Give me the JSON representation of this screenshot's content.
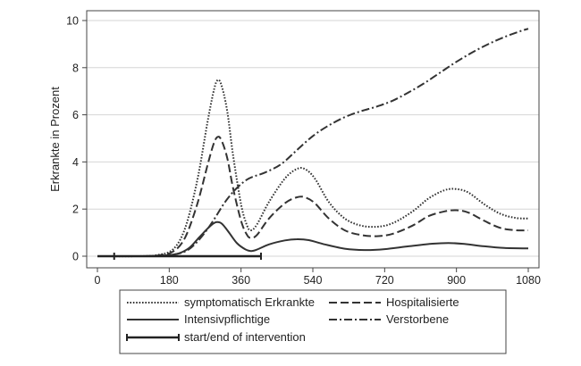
{
  "chart_data": {
    "type": "line",
    "title": "",
    "xlabel": "",
    "ylabel": "Erkrankte in Prozent",
    "xlim": [
      0,
      1080
    ],
    "ylim": [
      0,
      10
    ],
    "x_ticks": [
      0,
      180,
      360,
      540,
      720,
      900,
      1080
    ],
    "y_ticks": [
      0,
      2,
      4,
      6,
      8,
      10
    ],
    "grid": "horizontal",
    "legend_position": "bottom",
    "series": [
      {
        "name": "symptomatisch Erkrankte",
        "style": "dotted",
        "color": "#333333",
        "points": [
          [
            0,
            0
          ],
          [
            100,
            0
          ],
          [
            150,
            0.05
          ],
          [
            190,
            0.3
          ],
          [
            220,
            1.2
          ],
          [
            250,
            3.2
          ],
          [
            275,
            5.6
          ],
          [
            290,
            6.9
          ],
          [
            300,
            7.45
          ],
          [
            310,
            7.3
          ],
          [
            325,
            6.2
          ],
          [
            340,
            4.3
          ],
          [
            360,
            2.2
          ],
          [
            375,
            1.3
          ],
          [
            385,
            1.1
          ],
          [
            400,
            1.35
          ],
          [
            430,
            2.3
          ],
          [
            470,
            3.3
          ],
          [
            500,
            3.7
          ],
          [
            520,
            3.7
          ],
          [
            545,
            3.3
          ],
          [
            580,
            2.3
          ],
          [
            620,
            1.6
          ],
          [
            660,
            1.3
          ],
          [
            700,
            1.25
          ],
          [
            740,
            1.4
          ],
          [
            790,
            1.9
          ],
          [
            830,
            2.45
          ],
          [
            870,
            2.8
          ],
          [
            900,
            2.85
          ],
          [
            930,
            2.7
          ],
          [
            970,
            2.2
          ],
          [
            1010,
            1.8
          ],
          [
            1050,
            1.62
          ],
          [
            1080,
            1.6
          ]
        ]
      },
      {
        "name": "Hospitalisierte",
        "style": "dashed",
        "color": "#333333",
        "points": [
          [
            0,
            0
          ],
          [
            100,
            0
          ],
          [
            150,
            0.03
          ],
          [
            190,
            0.2
          ],
          [
            220,
            0.8
          ],
          [
            250,
            2.2
          ],
          [
            275,
            3.8
          ],
          [
            290,
            4.7
          ],
          [
            300,
            5.05
          ],
          [
            310,
            4.95
          ],
          [
            325,
            4.2
          ],
          [
            340,
            2.9
          ],
          [
            360,
            1.5
          ],
          [
            375,
            0.9
          ],
          [
            385,
            0.78
          ],
          [
            400,
            0.9
          ],
          [
            430,
            1.6
          ],
          [
            470,
            2.25
          ],
          [
            500,
            2.5
          ],
          [
            520,
            2.5
          ],
          [
            545,
            2.25
          ],
          [
            580,
            1.6
          ],
          [
            620,
            1.1
          ],
          [
            660,
            0.9
          ],
          [
            700,
            0.85
          ],
          [
            740,
            0.95
          ],
          [
            790,
            1.3
          ],
          [
            830,
            1.7
          ],
          [
            870,
            1.9
          ],
          [
            900,
            1.95
          ],
          [
            930,
            1.85
          ],
          [
            970,
            1.5
          ],
          [
            1010,
            1.2
          ],
          [
            1050,
            1.1
          ],
          [
            1080,
            1.1
          ]
        ]
      },
      {
        "name": "Intensivpflichtige",
        "style": "solid",
        "color": "#333333",
        "points": [
          [
            0,
            0
          ],
          [
            110,
            0
          ],
          [
            160,
            0.02
          ],
          [
            200,
            0.1
          ],
          [
            230,
            0.35
          ],
          [
            255,
            0.8
          ],
          [
            275,
            1.15
          ],
          [
            290,
            1.38
          ],
          [
            300,
            1.45
          ],
          [
            312,
            1.38
          ],
          [
            330,
            1.0
          ],
          [
            350,
            0.55
          ],
          [
            370,
            0.3
          ],
          [
            385,
            0.22
          ],
          [
            400,
            0.28
          ],
          [
            430,
            0.5
          ],
          [
            470,
            0.67
          ],
          [
            500,
            0.72
          ],
          [
            530,
            0.68
          ],
          [
            570,
            0.5
          ],
          [
            620,
            0.32
          ],
          [
            670,
            0.26
          ],
          [
            720,
            0.3
          ],
          [
            780,
            0.42
          ],
          [
            840,
            0.53
          ],
          [
            880,
            0.56
          ],
          [
            920,
            0.52
          ],
          [
            970,
            0.42
          ],
          [
            1020,
            0.35
          ],
          [
            1080,
            0.33
          ]
        ]
      },
      {
        "name": "Verstorbene",
        "style": "dashdot",
        "color": "#333333",
        "points": [
          [
            0,
            0
          ],
          [
            110,
            0
          ],
          [
            160,
            0.02
          ],
          [
            200,
            0.1
          ],
          [
            230,
            0.3
          ],
          [
            260,
            0.8
          ],
          [
            290,
            1.5
          ],
          [
            320,
            2.3
          ],
          [
            350,
            2.9
          ],
          [
            380,
            3.3
          ],
          [
            420,
            3.55
          ],
          [
            460,
            3.9
          ],
          [
            500,
            4.5
          ],
          [
            540,
            5.1
          ],
          [
            580,
            5.55
          ],
          [
            620,
            5.9
          ],
          [
            660,
            6.15
          ],
          [
            700,
            6.35
          ],
          [
            740,
            6.6
          ],
          [
            780,
            6.95
          ],
          [
            820,
            7.35
          ],
          [
            860,
            7.8
          ],
          [
            900,
            8.25
          ],
          [
            940,
            8.65
          ],
          [
            980,
            9.0
          ],
          [
            1020,
            9.3
          ],
          [
            1060,
            9.55
          ],
          [
            1080,
            9.65
          ]
        ]
      }
    ],
    "intervention": {
      "name": "start/end of intervention",
      "x_start": 42,
      "x_end": 410,
      "y": 0
    }
  }
}
